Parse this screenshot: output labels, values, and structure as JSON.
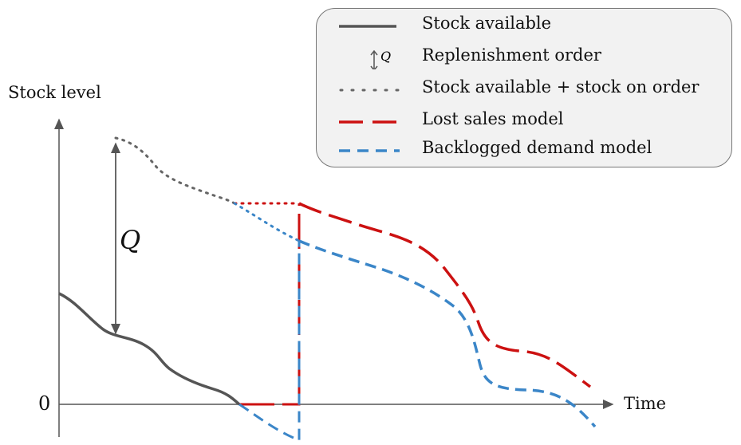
{
  "axes": {
    "y_label": "Stock level",
    "x_label": "Time",
    "zero_label": "0"
  },
  "order_label": "Q",
  "legend": {
    "items": [
      {
        "label": "Stock available",
        "style": "solid",
        "color": "#555555"
      },
      {
        "label": "Replenishment order",
        "style": "arrow",
        "color": "#555555",
        "symbol_text": "Q"
      },
      {
        "label": "Stock available + stock on order",
        "style": "dotted",
        "color": "#555555"
      },
      {
        "label": "Lost sales model",
        "style": "dashed-long",
        "color": "#cc1111"
      },
      {
        "label": "Backlogged demand model",
        "style": "dashed",
        "color": "#3b86c8"
      }
    ]
  },
  "colors": {
    "stock": "#555555",
    "lost_sales": "#cc1111",
    "backlogged": "#3b86c8",
    "axis": "#555555"
  }
}
